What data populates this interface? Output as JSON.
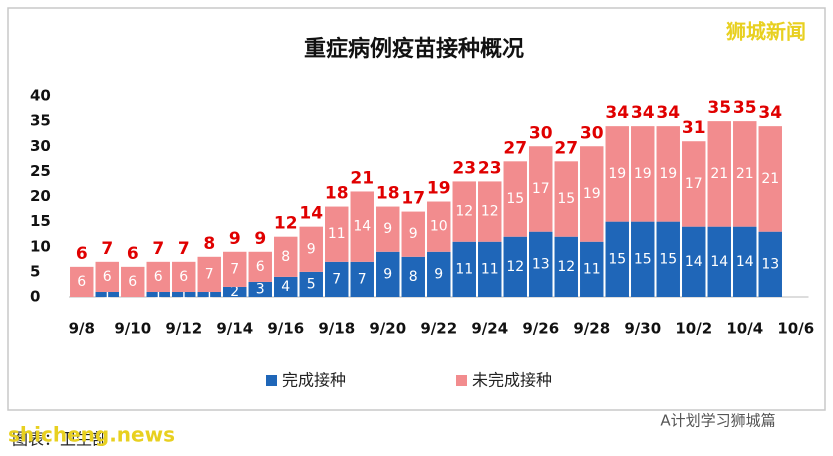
{
  "chart_data": {
    "type": "stacked_bar",
    "title": "重症病例疫苗接种概况",
    "categories": [
      "9/8",
      null,
      "9/10",
      null,
      "9/12",
      null,
      "9/14",
      null,
      "9/16",
      null,
      "9/18",
      null,
      "9/20",
      null,
      "9/22",
      null,
      "9/24",
      null,
      "9/26",
      null,
      "9/28",
      null,
      "9/30",
      null,
      "10/2",
      null,
      "10/4",
      null,
      "10/6"
    ],
    "series": [
      {
        "name": "完成接种",
        "color": "#1f66b8",
        "values": [
          0,
          1,
          0,
          1,
          1,
          1,
          2,
          3,
          4,
          5,
          7,
          7,
          9,
          8,
          9,
          11,
          11,
          12,
          13,
          12,
          11,
          15,
          15,
          15,
          14,
          14,
          14,
          13,
          null
        ]
      },
      {
        "name": "未完成接种",
        "color": "#f28c8e",
        "values": [
          6,
          6,
          6,
          6,
          6,
          7,
          7,
          6,
          8,
          9,
          11,
          14,
          9,
          9,
          10,
          12,
          12,
          15,
          17,
          15,
          19,
          19,
          19,
          19,
          17,
          21,
          21,
          21,
          null
        ]
      }
    ],
    "totals": [
      6,
      7,
      6,
      7,
      7,
      8,
      9,
      9,
      12,
      14,
      18,
      21,
      18,
      17,
      19,
      23,
      23,
      27,
      30,
      27,
      30,
      34,
      34,
      34,
      31,
      35,
      35,
      34,
      null
    ],
    "totals_color": "#e00000",
    "ylim": [
      0,
      40
    ],
    "yticks": [
      0,
      5,
      10,
      15,
      20,
      25,
      30,
      35,
      40
    ],
    "grid": false,
    "legend": "bottom",
    "watermark": "狮城新闻",
    "caption": "A计划学习狮城篇",
    "site": "shicheng.news",
    "source": "图表：卫生部"
  }
}
